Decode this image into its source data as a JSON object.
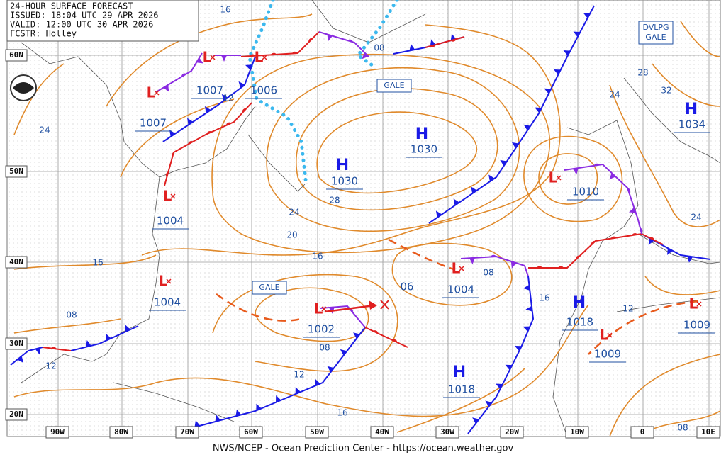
{
  "header": {
    "lines": [
      "24-HOUR SURFACE FORECAST",
      "ISSUED: 18:04 UTC 29 APR 2026",
      "VALID:  12:00 UTC 30 APR 2026",
      "FCSTR:  Holley"
    ]
  },
  "lat_labels": [
    "60N",
    "50N",
    "40N",
    "30N",
    "20N"
  ],
  "lon_labels": [
    "90W",
    "80W",
    "70W",
    "60W",
    "50W",
    "40W",
    "30W",
    "20W",
    "10W",
    "0",
    "10E"
  ],
  "centers": [
    {
      "symbol": "L",
      "pressure": "1007"
    },
    {
      "symbol": "L",
      "pressure": "1006"
    },
    {
      "symbol": "L",
      "pressure": "1007"
    },
    {
      "symbol": "H",
      "pressure": "1030"
    },
    {
      "symbol": "H",
      "pressure": "1030"
    },
    {
      "symbol": "L",
      "pressure": "1004"
    },
    {
      "symbol": "L",
      "pressure": "1004"
    },
    {
      "symbol": "L",
      "pressure": "1010"
    },
    {
      "symbol": "H",
      "pressure": "1034"
    },
    {
      "symbol": "L",
      "pressure": "1004"
    },
    {
      "symbol": "L",
      "pressure": "1002"
    },
    {
      "symbol": "H",
      "pressure": "1018"
    },
    {
      "symbol": "L",
      "pressure": "1009"
    },
    {
      "symbol": "L",
      "pressure": "1009"
    },
    {
      "symbol": "H",
      "pressure": "1018"
    }
  ],
  "isobar_labels": [
    "16",
    "08",
    "12",
    "24",
    "28",
    "24",
    "32",
    "24",
    "28",
    "20",
    "16",
    "16",
    "08",
    "06",
    "08",
    "16",
    "12",
    "08",
    "12",
    "12",
    "16",
    "08",
    "24"
  ],
  "warnings": [
    "GALE",
    "GALE",
    "DVLPG GALE"
  ],
  "footer": "NWS/NCEP - Ocean Prediction Center - https://ocean.weather.gov"
}
